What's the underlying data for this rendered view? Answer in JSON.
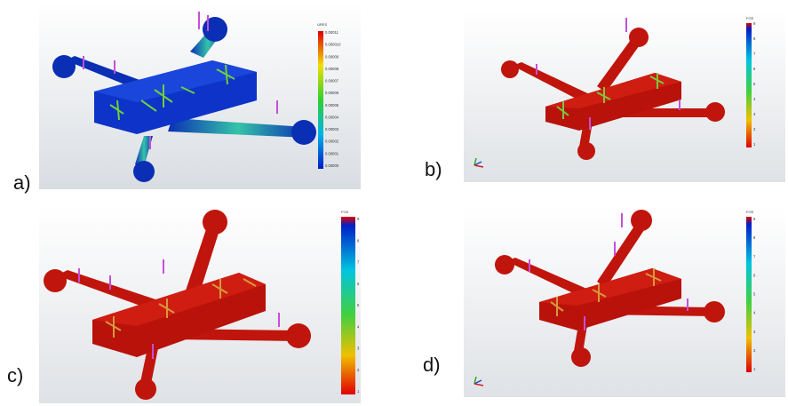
{
  "panels": [
    {
      "id": "a",
      "label": "a)",
      "palette": "blue-displacement",
      "legend_title": "URES",
      "legend_ticks": [
        "0.00011",
        "0.000010",
        "0.00009",
        "0.00008",
        "0.00007",
        "0.00006",
        "0.00005",
        "0.00004",
        "0.00003",
        "0.00002",
        "0.00001",
        "0.00000"
      ],
      "colors": {
        "body": "#0a2fb4",
        "arm_hot": "#49c59a",
        "mesh": "#6fcf3a",
        "load": "#c64fd8",
        "bg_top": "#ffffff",
        "bg_bottom": "#d9dde2"
      }
    },
    {
      "id": "b",
      "label": "b)",
      "palette": "red-fos",
      "legend_title": "FOS",
      "legend_ticks": [
        "9",
        "8",
        "7",
        "6",
        "5",
        "4",
        "3",
        "2",
        "1"
      ],
      "colors": {
        "body": "#c0150c",
        "mesh": "#7bc83c",
        "load": "#c64fd8",
        "bg_top": "#ffffff",
        "bg_bottom": "#dfe2e6"
      }
    },
    {
      "id": "c",
      "label": "c)",
      "palette": "red-fos",
      "legend_title": "FOS",
      "legend_ticks": [
        "9",
        "8",
        "7",
        "6",
        "5",
        "4",
        "3",
        "2",
        "1"
      ],
      "colors": {
        "body": "#c0150c",
        "mesh": "#d49a3c",
        "load": "#c64fd8",
        "bg_top": "#ffffff",
        "bg_bottom": "#dfe2e6"
      }
    },
    {
      "id": "d",
      "label": "d)",
      "palette": "red-fos",
      "legend_title": "FOS",
      "legend_ticks": [
        "9",
        "8",
        "7",
        "6",
        "5",
        "4",
        "3",
        "2",
        "1"
      ],
      "colors": {
        "body": "#c0150c",
        "mesh": "#d49a3c",
        "load": "#c64fd8",
        "bg_top": "#ffffff",
        "bg_bottom": "#dfe2e6"
      }
    }
  ]
}
